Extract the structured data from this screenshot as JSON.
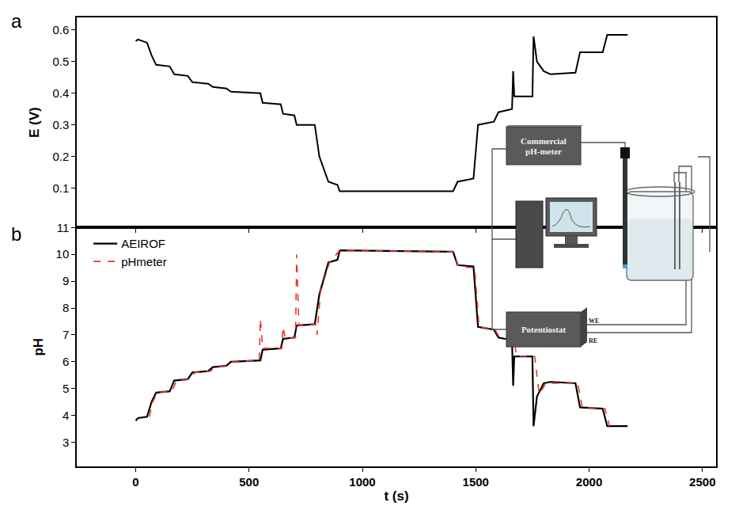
{
  "chart_data": [
    {
      "type": "line",
      "label": "a",
      "y_label": "E (V)",
      "xlim": [
        -260,
        2560
      ],
      "xticks": [
        0,
        500,
        1000,
        1500,
        2000,
        2500
      ],
      "ylim": [
        -0.025,
        0.64
      ],
      "yticks": [
        0.1,
        0.2,
        0.3,
        0.4,
        0.5,
        0.6
      ],
      "tick_labels": "y",
      "series": [
        {
          "name": "AEIROF",
          "color": "#000000",
          "line_style": "solid",
          "x": [
            0,
            10,
            50,
            70,
            90,
            150,
            170,
            230,
            250,
            320,
            340,
            400,
            420,
            550,
            560,
            640,
            650,
            700,
            710,
            790,
            810,
            850,
            890,
            900,
            1400,
            1420,
            1490,
            1510,
            1580,
            1600,
            1660,
            1665,
            1670,
            1750,
            1755,
            1770,
            1800,
            1830,
            1940,
            1960,
            2060,
            2080,
            2170
          ],
          "values": [
            0.565,
            0.57,
            0.56,
            0.52,
            0.49,
            0.485,
            0.46,
            0.455,
            0.435,
            0.43,
            0.42,
            0.415,
            0.405,
            0.4,
            0.37,
            0.365,
            0.335,
            0.33,
            0.3,
            0.3,
            0.2,
            0.12,
            0.11,
            0.09,
            0.09,
            0.12,
            0.13,
            0.3,
            0.31,
            0.34,
            0.35,
            0.47,
            0.39,
            0.39,
            0.58,
            0.5,
            0.47,
            0.46,
            0.465,
            0.53,
            0.53,
            0.585,
            0.585
          ]
        }
      ]
    },
    {
      "type": "line",
      "label": "b",
      "x_label": "t (s)",
      "y_label": "pH",
      "xlim": [
        -260,
        2560
      ],
      "xticks": [
        0,
        500,
        1000,
        1500,
        2000,
        2500
      ],
      "ylim": [
        2.1,
        11
      ],
      "yticks": [
        3,
        4,
        5,
        6,
        7,
        8,
        9,
        10,
        11
      ],
      "legend": "top left",
      "series": [
        {
          "name": "AEIROF",
          "color": "#000000",
          "line_style": "solid",
          "x": [
            0,
            10,
            50,
            70,
            90,
            150,
            170,
            230,
            250,
            320,
            340,
            400,
            420,
            550,
            560,
            640,
            650,
            700,
            710,
            790,
            810,
            850,
            890,
            900,
            1400,
            1420,
            1490,
            1510,
            1580,
            1600,
            1660,
            1665,
            1670,
            1750,
            1755,
            1770,
            1800,
            1830,
            1940,
            1960,
            2060,
            2080,
            2170
          ],
          "values": [
            3.8,
            3.9,
            3.95,
            4.5,
            4.85,
            4.9,
            5.3,
            5.35,
            5.6,
            5.65,
            5.8,
            5.85,
            6.0,
            6.05,
            6.45,
            6.5,
            6.85,
            6.9,
            7.35,
            7.4,
            8.5,
            9.7,
            9.8,
            10.15,
            10.1,
            9.6,
            9.55,
            7.3,
            7.2,
            6.9,
            6.8,
            5.1,
            6.2,
            6.2,
            3.6,
            4.7,
            5.2,
            5.25,
            5.2,
            4.3,
            4.25,
            3.6,
            3.6
          ]
        },
        {
          "name": "pHmeter",
          "color": "#e8392b",
          "line_style": "dash",
          "x": [
            60,
            75,
            95,
            160,
            180,
            240,
            260,
            330,
            350,
            410,
            430,
            545,
            550,
            560,
            645,
            650,
            660,
            705,
            710,
            720,
            795,
            800,
            815,
            855,
            900,
            1400,
            1425,
            1495,
            1515,
            1585,
            1605,
            1670,
            1680,
            1760,
            1780,
            1810,
            1950,
            1970,
            2070,
            2090
          ],
          "values": [
            3.95,
            4.5,
            4.85,
            4.9,
            5.3,
            5.35,
            5.6,
            5.65,
            5.8,
            5.85,
            6.0,
            6.05,
            7.6,
            6.5,
            6.5,
            7.3,
            6.85,
            6.9,
            10.0,
            7.35,
            7.4,
            7.0,
            8.6,
            9.7,
            10.15,
            10.1,
            9.55,
            9.5,
            7.3,
            7.2,
            6.9,
            6.8,
            6.2,
            6.2,
            4.8,
            5.2,
            5.2,
            4.3,
            4.25,
            3.6
          ]
        }
      ]
    }
  ],
  "inset": {
    "boxes": [
      "Commercial pH-meter",
      "Potentiostat"
    ],
    "terminals": [
      "WE",
      "RE"
    ]
  }
}
